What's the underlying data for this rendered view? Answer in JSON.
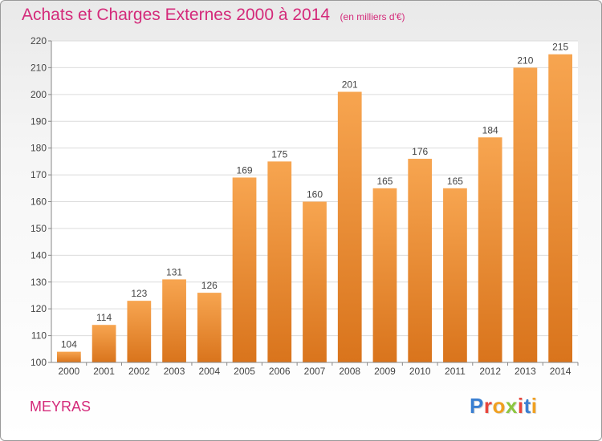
{
  "header": {
    "title": "Achats et Charges Externes 2000 à 2014",
    "unit": "(en milliers d'€)"
  },
  "footer": {
    "city": "MEYRAS",
    "brand": "Proxiti",
    "brand_colors": [
      "#3a7fd1",
      "#e8443a",
      "#f0a020",
      "#8cc63f",
      "#e8443a",
      "#3a7fd1",
      "#f0a020"
    ]
  },
  "chart_data": {
    "type": "bar",
    "categories": [
      "2000",
      "2001",
      "2002",
      "2003",
      "2004",
      "2005",
      "2006",
      "2007",
      "2008",
      "2009",
      "2010",
      "2011",
      "2012",
      "2013",
      "2014"
    ],
    "values": [
      104,
      114,
      123,
      131,
      126,
      169,
      175,
      160,
      201,
      165,
      176,
      165,
      184,
      210,
      215
    ],
    "title": "Achats et Charges Externes 2000 à 2014",
    "xlabel": "",
    "ylabel": "",
    "ylim": [
      100,
      220
    ],
    "yticks": [
      100,
      110,
      120,
      130,
      140,
      150,
      160,
      170,
      180,
      190,
      200,
      210,
      220
    ],
    "grid": true,
    "bar_color_top": "#f7a550",
    "bar_color_bottom": "#d9741c"
  }
}
